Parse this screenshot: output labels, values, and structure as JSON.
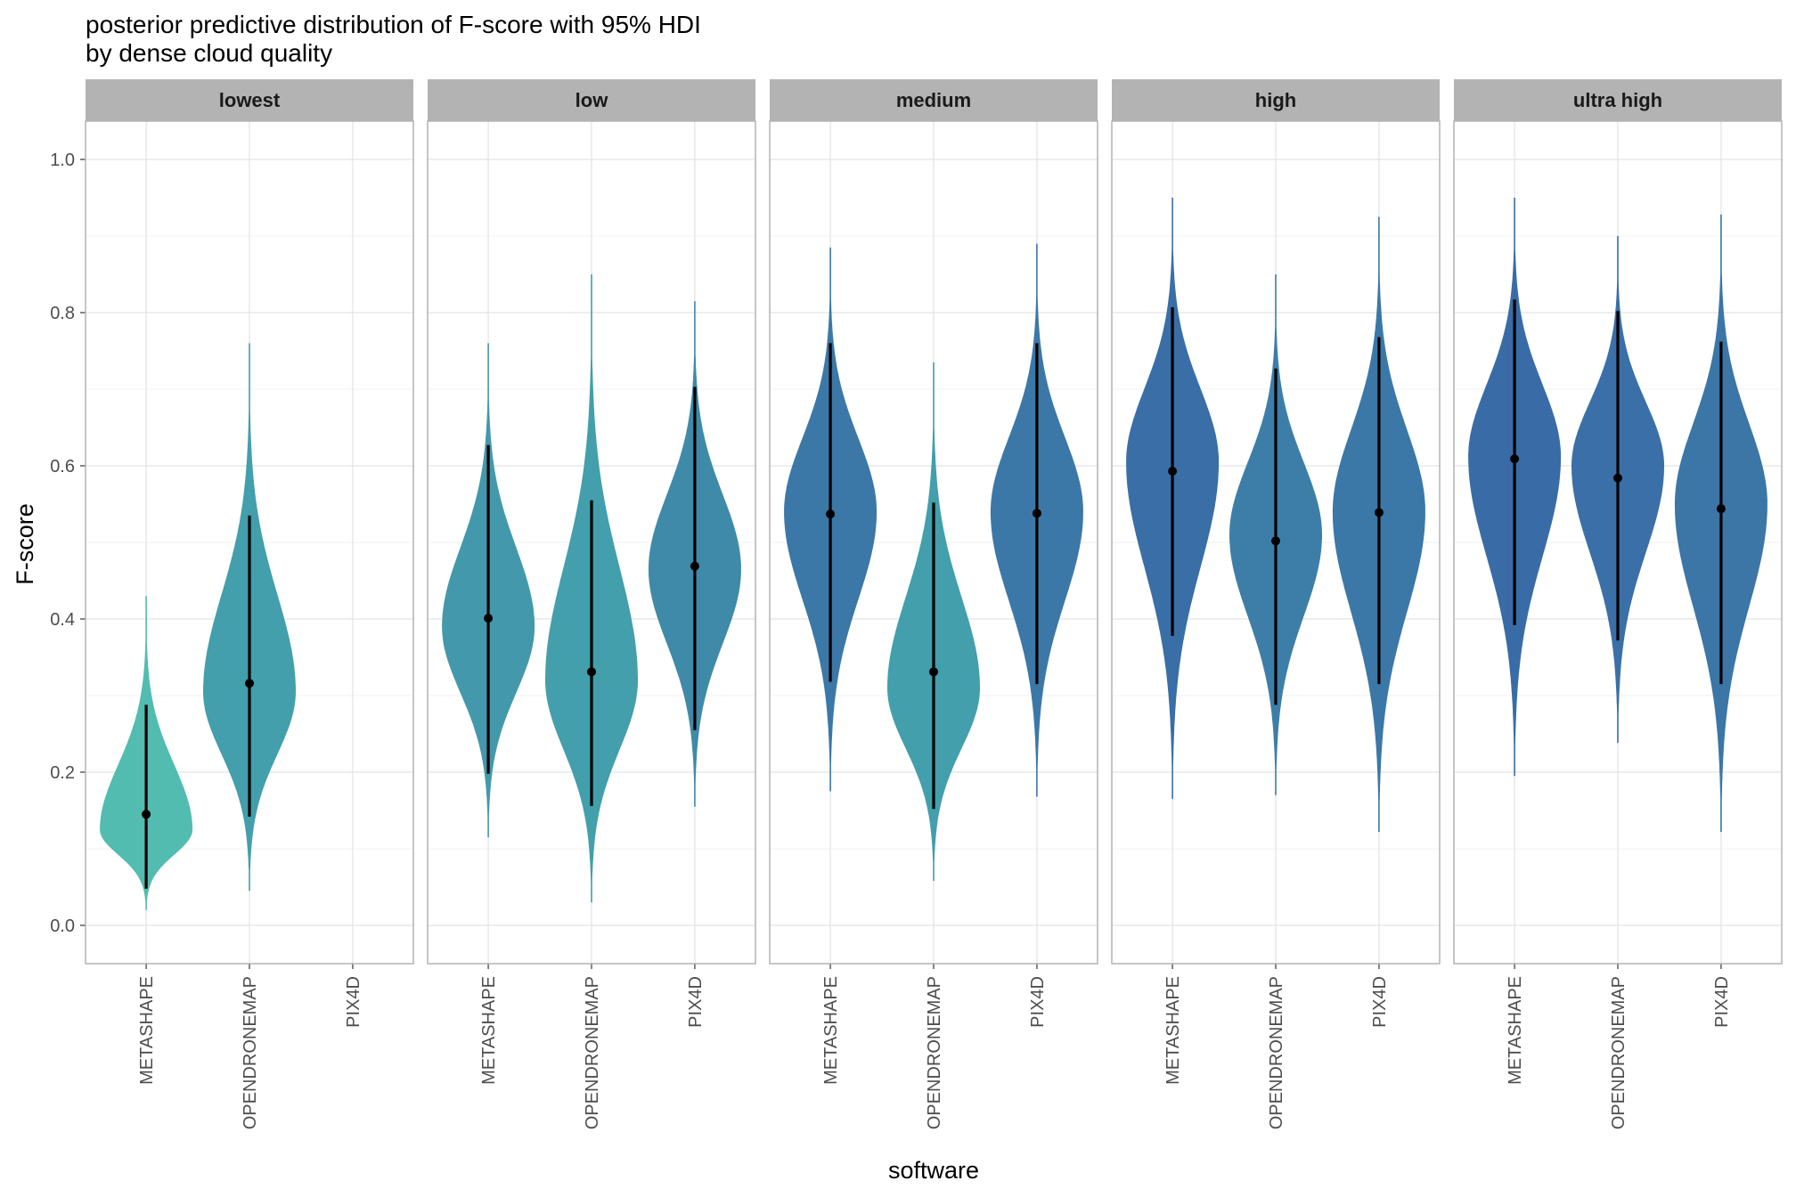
{
  "chart_data": {
    "type": "violin",
    "title": "posterior predictive distribution of F-score with 95% HDI",
    "subtitle": "by dense cloud quality",
    "xlabel": "software",
    "ylabel": "F-score",
    "ylim": [
      -0.05,
      1.05
    ],
    "yticks": [
      "0.0",
      "0.2",
      "0.4",
      "0.6",
      "0.8",
      "1.0"
    ],
    "grid": true,
    "categories": [
      "METASHAPE",
      "OPENDRONEMAP",
      "PIX4D"
    ],
    "panels": [
      {
        "label": "lowest",
        "violins": [
          {
            "software": "METASHAPE",
            "median": 0.145,
            "hdi": [
              0.048,
              0.288
            ],
            "range": [
              0.02,
              0.43
            ],
            "mode": 0.125,
            "color": "#52bcb0"
          },
          {
            "software": "OPENDRONEMAP",
            "median": 0.316,
            "hdi": [
              0.142,
              0.535
            ],
            "range": [
              0.045,
              0.76
            ],
            "mode": 0.305,
            "color": "#429fab"
          }
        ]
      },
      {
        "label": "low",
        "violins": [
          {
            "software": "METASHAPE",
            "median": 0.401,
            "hdi": [
              0.198,
              0.627
            ],
            "range": [
              0.115,
              0.76
            ],
            "mode": 0.39,
            "color": "#4399ab"
          },
          {
            "software": "OPENDRONEMAP",
            "median": 0.331,
            "hdi": [
              0.156,
              0.555
            ],
            "range": [
              0.03,
              0.85
            ],
            "mode": 0.32,
            "color": "#429fab"
          },
          {
            "software": "PIX4D",
            "median": 0.469,
            "hdi": [
              0.255,
              0.703
            ],
            "range": [
              0.155,
              0.815
            ],
            "mode": 0.465,
            "color": "#3f8aa8"
          }
        ]
      },
      {
        "label": "medium",
        "violins": [
          {
            "software": "METASHAPE",
            "median": 0.537,
            "hdi": [
              0.318,
              0.76
            ],
            "range": [
              0.175,
              0.885
            ],
            "mode": 0.54,
            "color": "#3b78a7"
          },
          {
            "software": "OPENDRONEMAP",
            "median": 0.331,
            "hdi": [
              0.152,
              0.552
            ],
            "range": [
              0.058,
              0.735
            ],
            "mode": 0.31,
            "color": "#429fab"
          },
          {
            "software": "PIX4D",
            "median": 0.538,
            "hdi": [
              0.315,
              0.76
            ],
            "range": [
              0.168,
              0.89
            ],
            "mode": 0.54,
            "color": "#3b78a7"
          }
        ]
      },
      {
        "label": "high",
        "violins": [
          {
            "software": "METASHAPE",
            "median": 0.593,
            "hdi": [
              0.378,
              0.807
            ],
            "range": [
              0.165,
              0.95
            ],
            "mode": 0.605,
            "color": "#396ea6"
          },
          {
            "software": "OPENDRONEMAP",
            "median": 0.502,
            "hdi": [
              0.288,
              0.727
            ],
            "range": [
              0.17,
              0.85
            ],
            "mode": 0.51,
            "color": "#3d7ea8"
          },
          {
            "software": "PIX4D",
            "median": 0.539,
            "hdi": [
              0.315,
              0.768
            ],
            "range": [
              0.122,
              0.925
            ],
            "mode": 0.54,
            "color": "#3b78a7"
          }
        ]
      },
      {
        "label": "ultra high",
        "violins": [
          {
            "software": "METASHAPE",
            "median": 0.609,
            "hdi": [
              0.392,
              0.817
            ],
            "range": [
              0.195,
              0.95
            ],
            "mode": 0.612,
            "color": "#396ca6"
          },
          {
            "software": "OPENDRONEMAP",
            "median": 0.584,
            "hdi": [
              0.372,
              0.802
            ],
            "range": [
              0.238,
              0.9
            ],
            "mode": 0.6,
            "color": "#3a70a7"
          },
          {
            "software": "PIX4D",
            "median": 0.544,
            "hdi": [
              0.315,
              0.762
            ],
            "range": [
              0.122,
              0.928
            ],
            "mode": 0.55,
            "color": "#3b76a7"
          }
        ]
      }
    ]
  }
}
